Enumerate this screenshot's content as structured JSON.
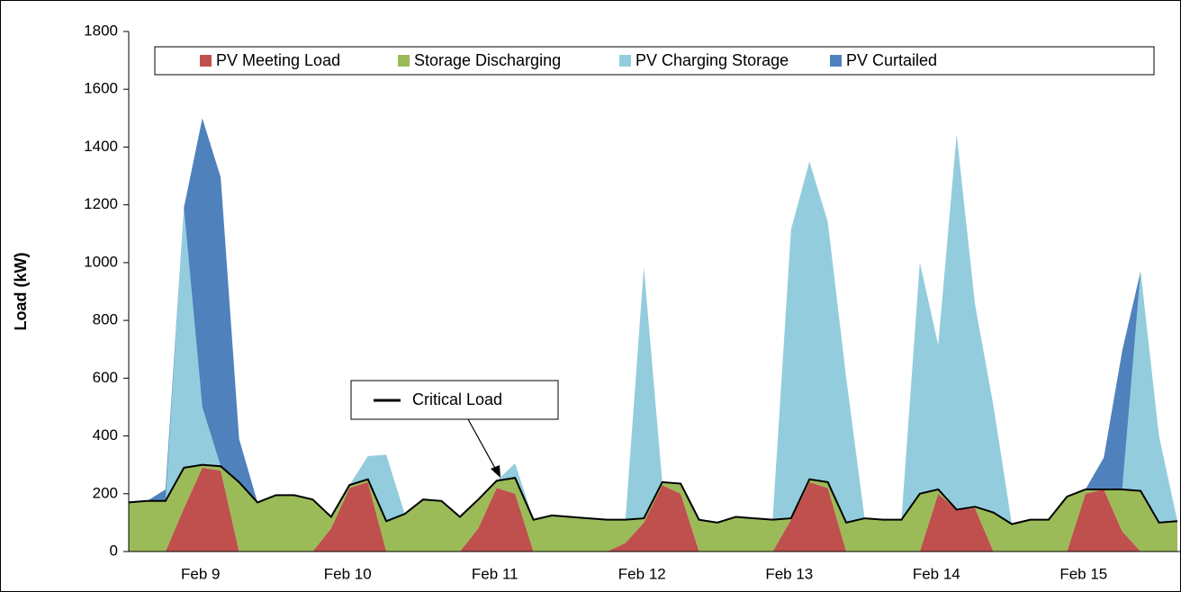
{
  "chart_data": {
    "type": "stacked_area",
    "y_label": "Load (kW)",
    "categories": [
      null,
      null,
      null,
      null,
      "Feb 9",
      null,
      null,
      null,
      null,
      null,
      null,
      null,
      "Feb 10",
      null,
      null,
      null,
      null,
      null,
      null,
      null,
      "Feb 11",
      null,
      null,
      null,
      null,
      null,
      null,
      null,
      "Feb 12",
      null,
      null,
      null,
      null,
      null,
      null,
      null,
      "Feb 13",
      null,
      null,
      null,
      null,
      null,
      null,
      null,
      "Feb 14",
      null,
      null,
      null,
      null,
      null,
      null,
      null,
      "Feb 15",
      null,
      null,
      null,
      null,
      null
    ],
    "series": [
      {
        "name": "PV Meeting Load",
        "color": "#c0504d",
        "values": [
          0,
          0,
          0,
          150,
          290,
          280,
          0,
          0,
          0,
          0,
          0,
          80,
          220,
          240,
          0,
          0,
          0,
          0,
          0,
          80,
          220,
          200,
          0,
          0,
          0,
          0,
          0,
          30,
          100,
          230,
          200,
          0,
          0,
          0,
          0,
          0,
          110,
          240,
          220,
          0,
          0,
          0,
          0,
          0,
          200,
          145,
          150,
          0,
          0,
          0,
          0,
          0,
          200,
          215,
          70,
          0,
          0,
          0
        ]
      },
      {
        "name": "Storage Discharging",
        "color": "#9bbb59",
        "values": [
          170,
          175,
          175,
          140,
          10,
          15,
          240,
          170,
          195,
          195,
          180,
          40,
          10,
          10,
          105,
          130,
          180,
          175,
          120,
          100,
          25,
          55,
          110,
          125,
          120,
          115,
          110,
          80,
          15,
          10,
          35,
          110,
          100,
          120,
          115,
          110,
          5,
          10,
          20,
          100,
          115,
          110,
          110,
          200,
          15,
          0,
          5,
          135,
          95,
          110,
          110,
          190,
          15,
          0,
          145,
          210,
          100,
          105
        ]
      },
      {
        "name": "PV Charging Storage",
        "color": "#93cddd",
        "values": [
          0,
          0,
          0,
          900,
          200,
          0,
          0,
          0,
          0,
          0,
          0,
          0,
          0,
          80,
          230,
          0,
          0,
          0,
          0,
          0,
          0,
          50,
          0,
          0,
          0,
          0,
          0,
          0,
          870,
          0,
          0,
          0,
          0,
          0,
          0,
          0,
          1000,
          1100,
          900,
          500,
          0,
          0,
          0,
          800,
          500,
          1300,
          700,
          370,
          0,
          0,
          0,
          0,
          0,
          0,
          0,
          760,
          300,
          0
        ]
      },
      {
        "name": "PV Curtailed",
        "color": "#4f81bd",
        "values": [
          0,
          0,
          40,
          0,
          1000,
          1000,
          150,
          0,
          0,
          0,
          0,
          0,
          0,
          0,
          0,
          0,
          0,
          0,
          0,
          0,
          0,
          0,
          0,
          0,
          0,
          0,
          0,
          0,
          0,
          0,
          0,
          0,
          0,
          0,
          0,
          0,
          0,
          0,
          0,
          0,
          0,
          0,
          0,
          0,
          0,
          0,
          0,
          0,
          0,
          0,
          0,
          0,
          0,
          110,
          480,
          0,
          0,
          0
        ]
      },
      {
        "name": "Critical Load",
        "type": "line",
        "color": "#000000",
        "values": [
          170,
          175,
          175,
          290,
          300,
          295,
          240,
          170,
          195,
          195,
          180,
          120,
          230,
          250,
          105,
          130,
          180,
          175,
          120,
          180,
          245,
          255,
          110,
          125,
          120,
          115,
          110,
          110,
          115,
          240,
          235,
          110,
          100,
          120,
          115,
          110,
          115,
          250,
          240,
          100,
          115,
          110,
          110,
          200,
          215,
          145,
          155,
          135,
          95,
          110,
          110,
          190,
          215,
          215,
          215,
          210,
          100,
          105
        ]
      }
    ],
    "ylim": [
      0,
      1800
    ],
    "yticks": [
      0,
      200,
      400,
      600,
      800,
      1000,
      1200,
      1400,
      1600,
      1800
    ]
  }
}
